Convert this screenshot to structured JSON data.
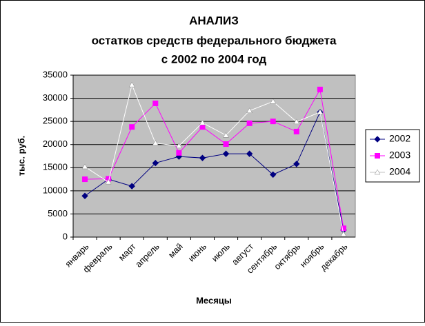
{
  "chart_data": {
    "type": "line",
    "title": [
      "АНАЛИЗ",
      "остатков средств федерального бюджета",
      "с 2002 по 2004 год"
    ],
    "x_label": "Месяцы",
    "y_label": "тыс. руб.",
    "categories": [
      "январь",
      "февраль",
      "март",
      "апрель",
      "май",
      "июнь",
      "июль",
      "август",
      "сентябрь",
      "октябрь",
      "ноябрь",
      "декабрь"
    ],
    "series": [
      {
        "name": "2002",
        "color": "#000080",
        "marker": "diamond",
        "values": [
          8900,
          12500,
          11000,
          16000,
          17400,
          17100,
          18000,
          18000,
          13500,
          15800,
          27000,
          1500
        ]
      },
      {
        "name": "2003",
        "color": "#ff00ff",
        "marker": "square",
        "values": [
          12500,
          12600,
          23800,
          28900,
          18200,
          23800,
          20100,
          24600,
          25000,
          22800,
          31900,
          1900
        ]
      },
      {
        "name": "2004",
        "color": "#ffffff",
        "marker": "triangle",
        "values": [
          15200,
          11900,
          32900,
          20300,
          19700,
          24700,
          22000,
          27300,
          29300,
          24900,
          27000,
          600
        ]
      }
    ],
    "ylim": [
      0,
      35000
    ],
    "yticks": [
      0,
      5000,
      10000,
      15000,
      20000,
      25000,
      30000,
      35000
    ],
    "grid": true,
    "plot_background": "#c0c0c0",
    "legend": "right"
  }
}
